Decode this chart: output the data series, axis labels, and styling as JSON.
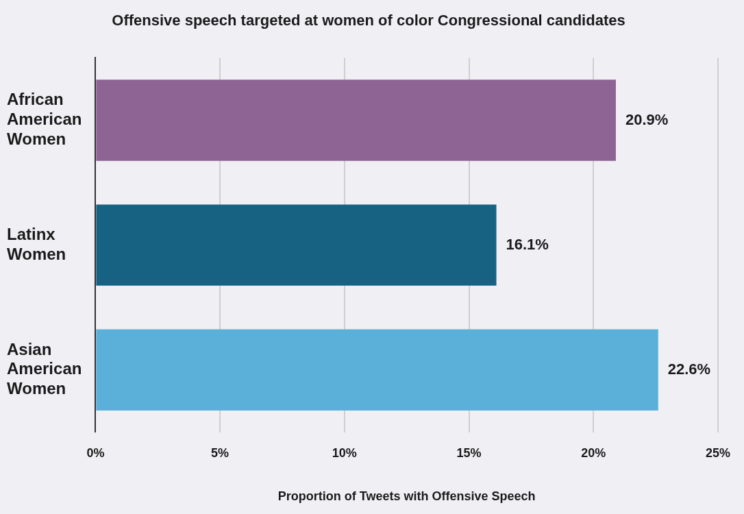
{
  "chart_data": {
    "type": "bar",
    "orientation": "horizontal",
    "title": "Offensive speech targeted at women of color Congressional candidates",
    "xlabel": "Proportion of Tweets with Offensive Speech",
    "categories": [
      "African American Women",
      "Latinx Women",
      "Asian American Women"
    ],
    "values": [
      20.9,
      16.1,
      22.6
    ],
    "colors": [
      "#8e6494",
      "#176183",
      "#5ab0d9"
    ],
    "value_labels": [
      "20.9%",
      "16.1%",
      "22.6%"
    ],
    "xlim": [
      0,
      25
    ],
    "xticks": [
      {
        "value": 0,
        "label": "0%"
      },
      {
        "value": 5,
        "label": "5%"
      },
      {
        "value": 10,
        "label": "10%"
      },
      {
        "value": 15,
        "label": "15%"
      },
      {
        "value": 20,
        "label": "20%"
      },
      {
        "value": 25,
        "label": "25%"
      }
    ],
    "grid": "x",
    "legend": false
  }
}
